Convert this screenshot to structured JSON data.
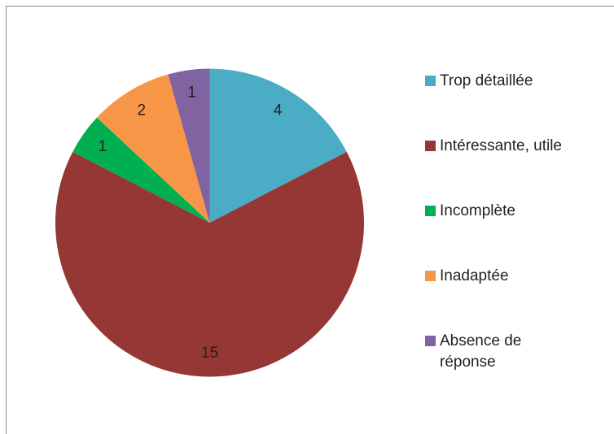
{
  "chart_data": {
    "type": "pie",
    "categories": [
      "Trop détaillée",
      "Intéressante, utile",
      "Incomplète",
      "Inadaptée",
      "Absence de réponse"
    ],
    "values": [
      4,
      15,
      1,
      2,
      1
    ],
    "colors": [
      "#4bacc6",
      "#953735",
      "#00b050",
      "#f79646",
      "#8064a2"
    ],
    "legend": "right"
  }
}
